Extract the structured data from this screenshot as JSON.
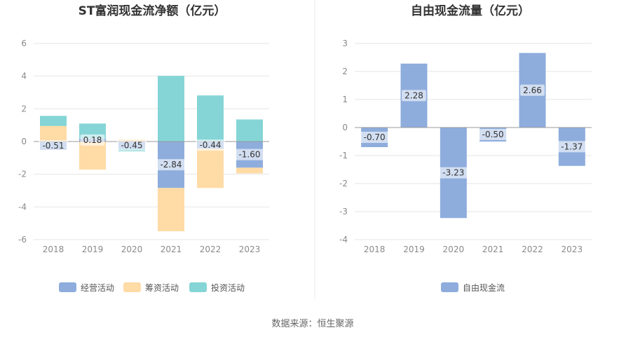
{
  "source": "数据来源：恒生聚源",
  "colors": {
    "operating": "#8EADDD",
    "financing": "#FFDBA5",
    "investing": "#85D5D6",
    "free_cash_flow": "#8EADDD"
  },
  "chart_data": [
    {
      "type": "bar",
      "title": "ST富润现金流净额（亿元）",
      "categories": [
        "2018",
        "2019",
        "2020",
        "2021",
        "2022",
        "2023"
      ],
      "ylim": [
        -6,
        6
      ],
      "yticks": [
        -6,
        -4,
        -2,
        0,
        2,
        4,
        6
      ],
      "stacked": true,
      "grid": true,
      "legend_position": "bottom",
      "series": [
        {
          "name": "经营活动",
          "color_key": "operating",
          "values": [
            -0.51,
            0.18,
            -0.45,
            -2.84,
            -0.44,
            -1.6
          ],
          "labels": [
            "-0.51",
            "0.18",
            "-0.45",
            "-2.84",
            "-0.44",
            "-1.60"
          ]
        },
        {
          "name": "筹资活动",
          "color_key": "financing",
          "values": [
            0.95,
            -1.72,
            0.12,
            -2.65,
            -2.4,
            -0.35
          ]
        },
        {
          "name": "投资活动",
          "color_key": "investing",
          "values": [
            0.62,
            0.92,
            -0.15,
            4.02,
            2.82,
            1.35
          ]
        }
      ]
    },
    {
      "type": "bar",
      "title": "自由现金流量（亿元）",
      "categories": [
        "2018",
        "2019",
        "2020",
        "2021",
        "2022",
        "2023"
      ],
      "ylim": [
        -4,
        3
      ],
      "yticks": [
        -4,
        -3,
        -2,
        -1,
        0,
        1,
        2,
        3
      ],
      "grid": true,
      "legend_position": "bottom",
      "series": [
        {
          "name": "自由现金流",
          "color_key": "free_cash_flow",
          "values": [
            -0.7,
            2.28,
            -3.23,
            -0.5,
            2.66,
            -1.37
          ],
          "labels": [
            "-0.70",
            "2.28",
            "-3.23",
            "-0.50",
            "2.66",
            "-1.37"
          ]
        }
      ]
    }
  ]
}
